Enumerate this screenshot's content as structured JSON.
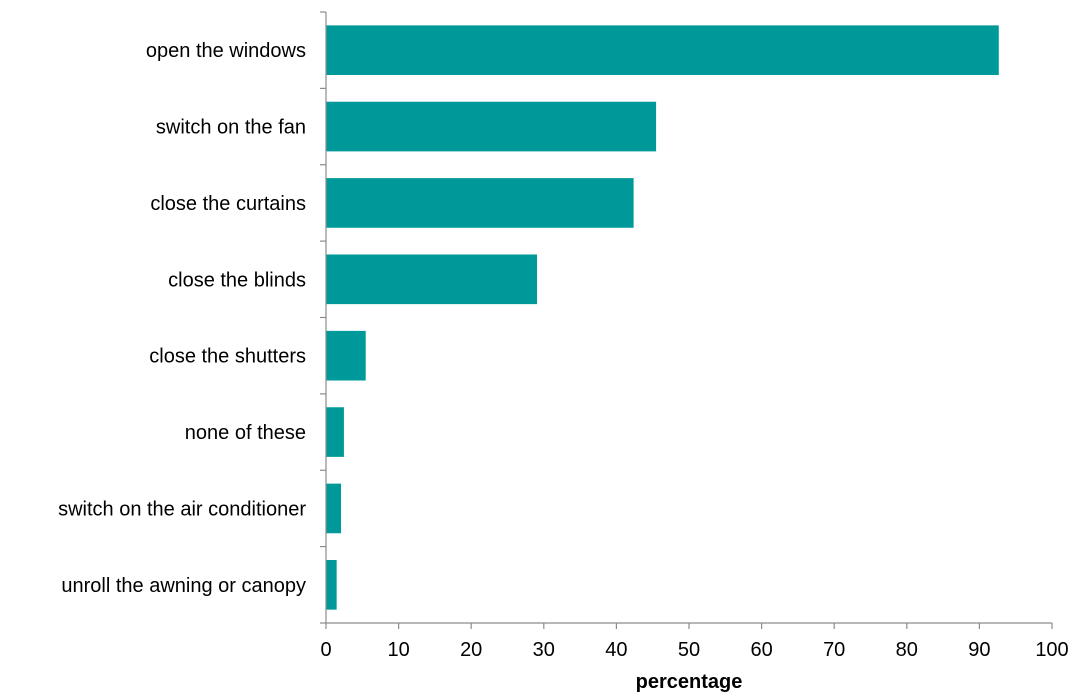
{
  "chart_data": {
    "type": "bar",
    "orientation": "horizontal",
    "categories": [
      "open the windows",
      "switch on the fan",
      "close the curtains",
      "close the blinds",
      "close the shutters",
      "none of these",
      "switch on the air conditioner",
      "unroll the awning or canopy"
    ],
    "values": [
      92.6,
      45.4,
      42.3,
      29.0,
      5.4,
      2.4,
      2.0,
      1.4
    ],
    "title": "",
    "xlabel": "percentage",
    "ylabel": "",
    "xlim": [
      0,
      100
    ],
    "xticks": [
      0,
      10,
      20,
      30,
      40,
      50,
      60,
      70,
      80,
      90,
      100
    ],
    "grid": false,
    "legend": "none",
    "bar_color": "#009999"
  }
}
